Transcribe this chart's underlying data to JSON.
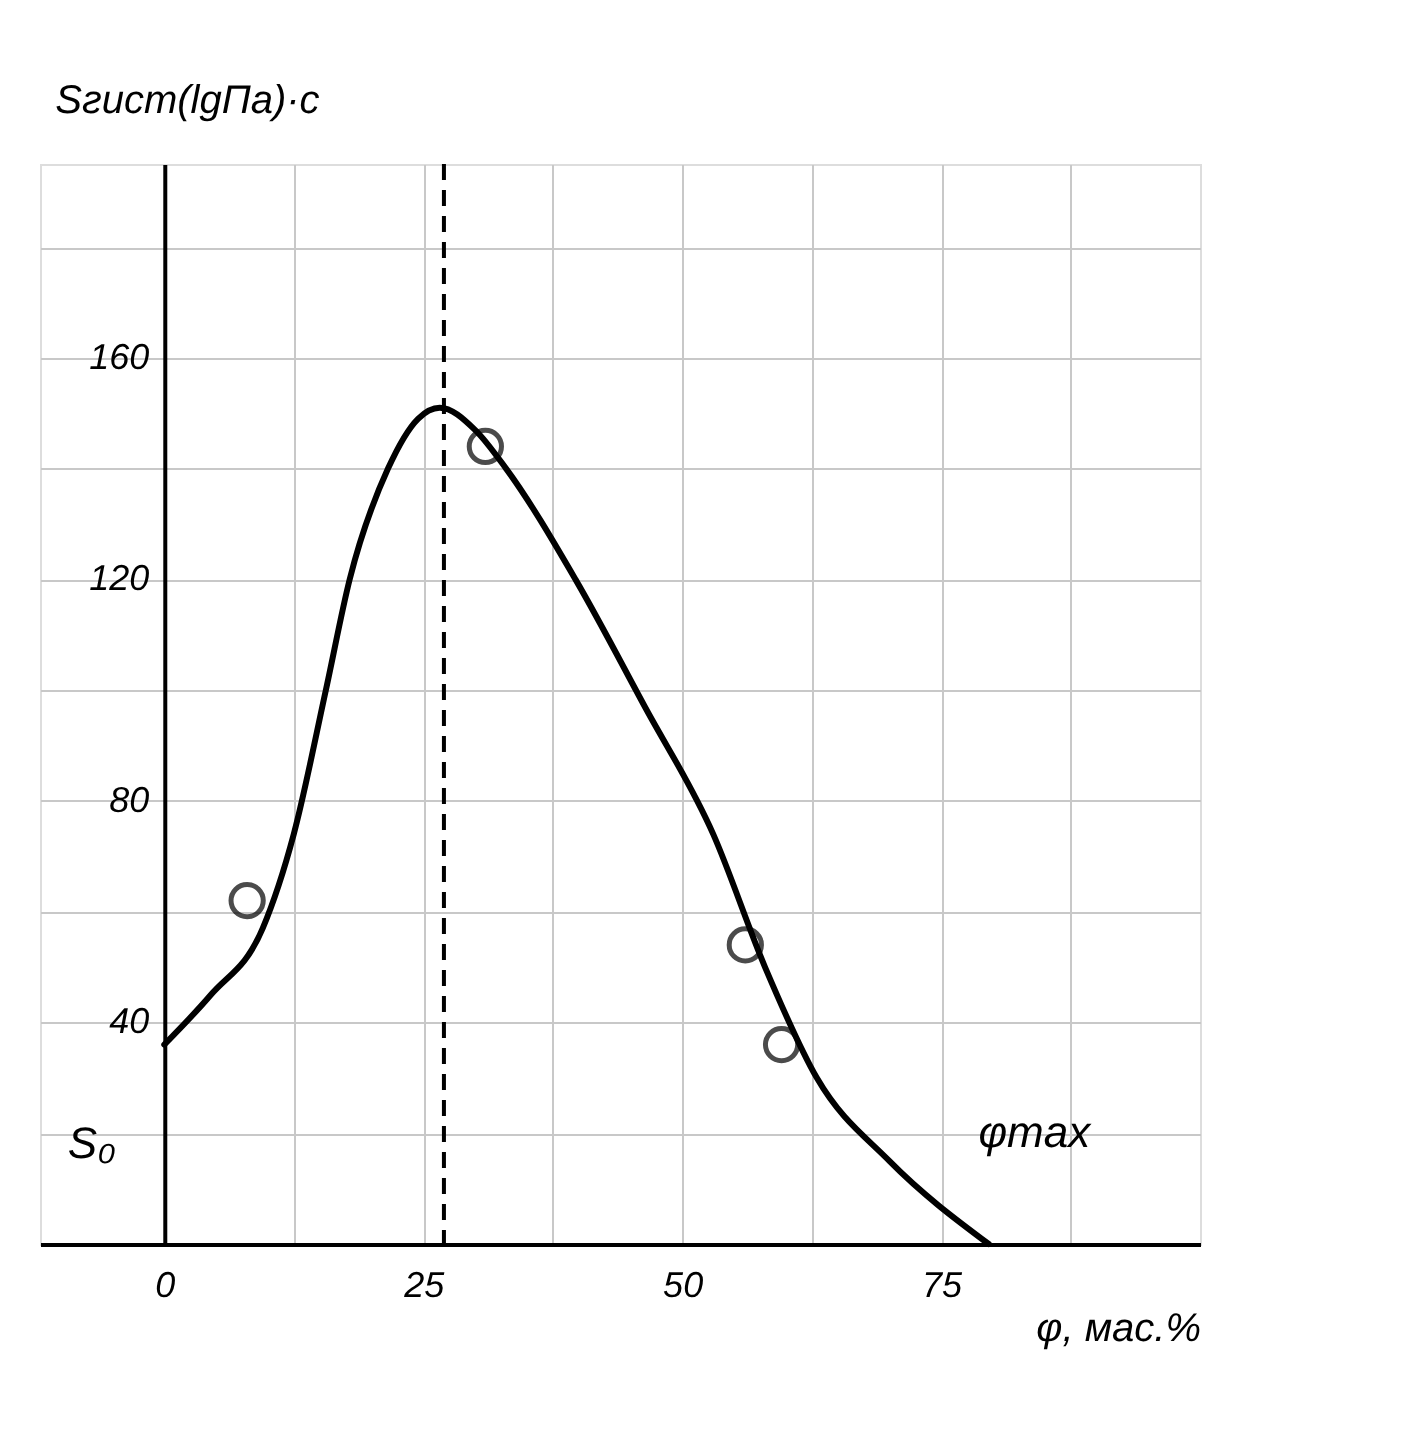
{
  "chart_data": {
    "type": "line",
    "xlabel": "φ, мас.%",
    "ylabel": "Sгист(lgПа)·с",
    "xlim": [
      -12,
      100
    ],
    "ylim": [
      0,
      195
    ],
    "xticks": [
      0,
      {
        "value": 12.5,
        "label": null
      },
      25,
      {
        "value": 37.5,
        "label": null
      },
      50,
      {
        "value": 62.5,
        "label": null
      },
      75,
      {
        "value": 87.5,
        "label": null
      }
    ],
    "yticks": [
      {
        "value": 20,
        "label": null
      },
      40,
      {
        "value": 60,
        "label": null
      },
      80,
      {
        "value": 100,
        "label": null
      },
      120,
      {
        "value": 140,
        "label": null
      },
      160,
      {
        "value": 180,
        "label": null
      }
    ],
    "grid": true,
    "series": [
      {
        "color": "#000000",
        "marker": "none",
        "line_style": "solid",
        "x": [
          0,
          4.5,
          9.5,
          12.5,
          15.6,
          17.9,
          21.6,
          24.5,
          26.6,
          30,
          33,
          39.7,
          46.4,
          53,
          58,
          63,
          70,
          79.6
        ],
        "values": [
          36,
          45,
          57,
          74,
          100,
          120,
          140,
          149,
          151,
          147,
          140,
          120,
          97,
          74,
          50,
          30,
          15,
          0
        ]
      },
      {
        "type": "scatter",
        "color": "#000000",
        "marker": "circle",
        "x": [
          8,
          31,
          56.1,
          59.6
        ],
        "values": [
          62,
          144,
          54,
          36
        ]
      }
    ],
    "ref_lines": [
      {
        "axis": "x",
        "value": 27,
        "line_style": "dashed",
        "color": "#000000"
      }
    ],
    "annotations": [
      "S₀",
      "φmax"
    ]
  }
}
